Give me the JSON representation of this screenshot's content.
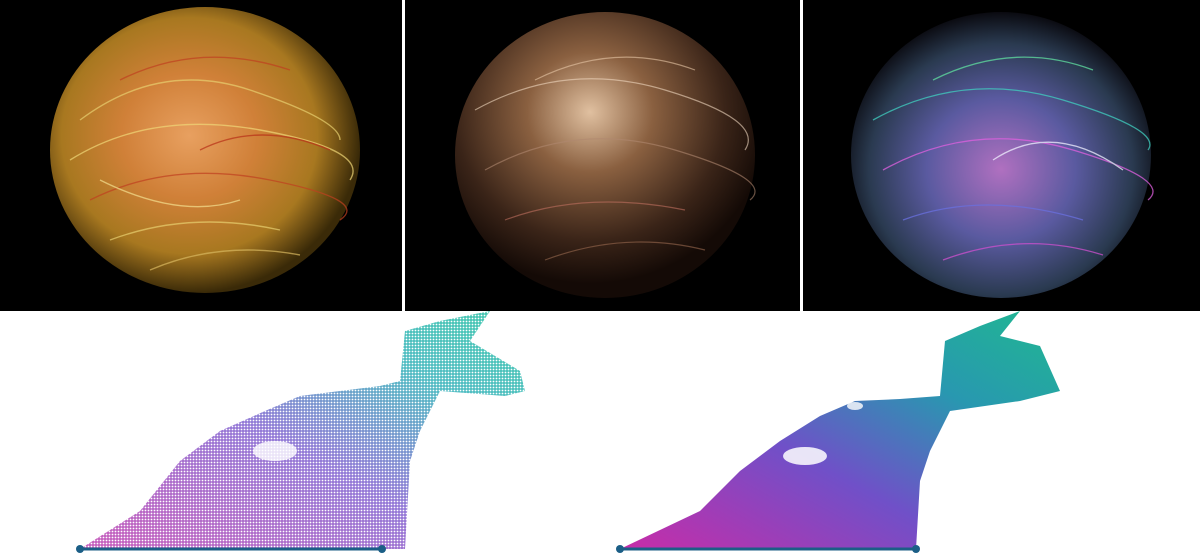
{
  "figure": {
    "panels": [
      {
        "name": "fur-sphere-warm",
        "colors": [
          "#3a1a08",
          "#c9a040",
          "#e8d070",
          "#c04020"
        ]
      },
      {
        "name": "fur-sphere-muted",
        "colors": [
          "#1a1008",
          "#8a6a50",
          "#e0c0a0",
          "#6a3a28"
        ]
      },
      {
        "name": "fur-sphere-colorful",
        "colors": [
          "#101018",
          "#6a70c0",
          "#e060e0",
          "#40d0c0"
        ]
      },
      {
        "name": "point-surface",
        "colors": [
          "#c040b0",
          "#8060d0",
          "#30b0b8",
          "#20c0a0"
        ]
      },
      {
        "name": "shaded-surface",
        "colors": [
          "#c82ca8",
          "#7050c8",
          "#2898b0",
          "#20b890"
        ]
      }
    ],
    "baseline_color": "#1b5e86"
  }
}
